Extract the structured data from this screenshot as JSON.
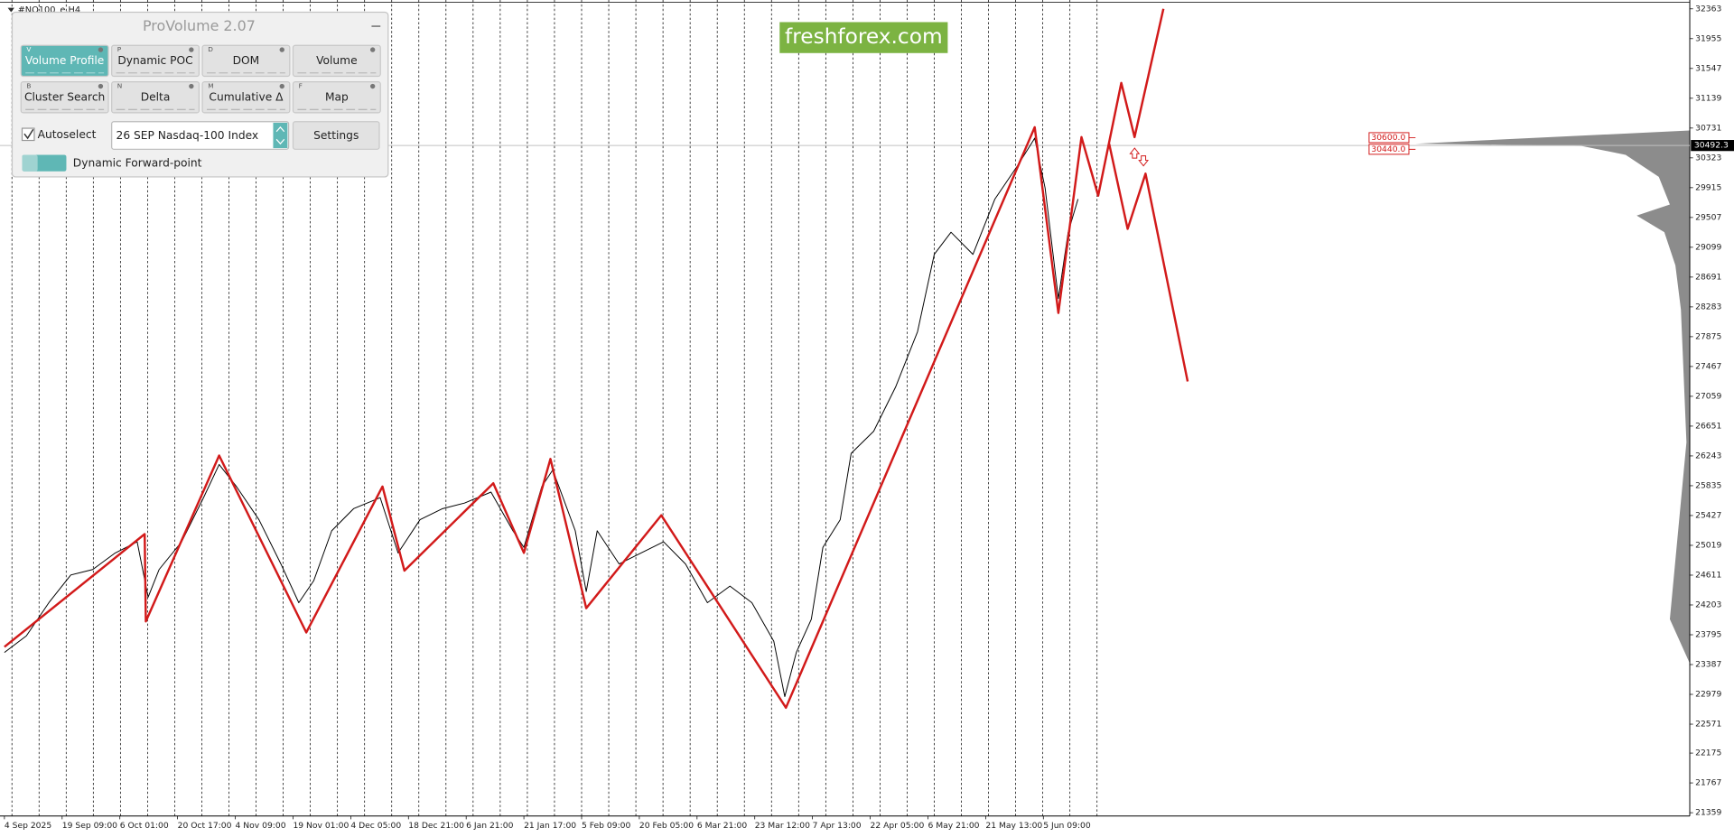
{
  "window": {
    "symbol": "#NQ100_e,H4"
  },
  "logo": "freshforex.com",
  "panel": {
    "title": "ProVolume 2.07",
    "buttons": [
      {
        "key": "V",
        "label": "Volume Profile",
        "active": true
      },
      {
        "key": "P",
        "label": "Dynamic POC",
        "active": false
      },
      {
        "key": "D",
        "label": "DOM",
        "active": false
      },
      {
        "label": "Volume",
        "active": false
      },
      {
        "key": "B",
        "label": "Cluster Search",
        "active": false
      },
      {
        "key": "N",
        "label": "Delta",
        "active": false
      },
      {
        "key": "M",
        "label": "Cumulative Δ",
        "active": false
      },
      {
        "key": "F",
        "label": "Map",
        "active": false
      }
    ],
    "autoselect": "Autoselect",
    "instrument": "26 SEP Nasdaq-100 Index",
    "settings": "Settings",
    "forward_point": "Dynamic Forward-point"
  },
  "chart_data": {
    "type": "line",
    "categories": [
      "4 Sep 2025",
      "19 Sep 09:00",
      "6 Oct 01:00",
      "20 Oct 17:00",
      "4 Nov 09:00",
      "19 Nov 01:00",
      "4 Dec 05:00",
      "18 Dec 21:00",
      "6 Jan 21:00",
      "21 Jan 17:00",
      "5 Feb 09:00",
      "20 Feb 05:00",
      "6 Mar 21:00",
      "23 Mar 12:00",
      "7 Apr 13:00",
      "22 Apr 05:00",
      "6 May 21:00",
      "21 May 13:00",
      "5 Jun 09:00"
    ],
    "xlim": [
      0,
      29.18
    ],
    "ylim": [
      21314,
      32484
    ],
    "yticks": [
      32363,
      31955,
      31547,
      31139,
      30731,
      30323,
      29915,
      29507,
      29099,
      28691,
      28283,
      27875,
      27467,
      27059,
      26651,
      26243,
      25835,
      25427,
      25019,
      24611,
      24203,
      23795,
      23387,
      22979,
      22571,
      22175,
      21767,
      21359
    ],
    "series": [
      {
        "color": "#000000",
        "x": [
          0,
          0.38,
          0.77,
          1.15,
          1.53,
          1.92,
          2.3,
          2.49,
          2.68,
          3.07,
          3.45,
          3.72,
          4.02,
          4.41,
          4.79,
          5.1,
          5.36,
          5.67,
          6.05,
          6.51,
          6.82,
          7.2,
          7.59,
          7.97,
          8.43,
          8.81,
          9.0,
          9.31,
          9.5,
          9.89,
          10.08,
          10.27,
          10.65,
          11.03,
          11.42,
          11.8,
          12.18,
          12.57,
          12.95,
          13.33,
          13.52,
          13.72,
          13.98,
          14.18,
          14.48,
          14.67,
          15.06,
          15.44,
          15.82,
          16.11,
          16.4,
          16.78,
          17.16,
          17.55,
          17.85,
          18.03,
          18.26,
          18.43,
          18.6
        ],
        "values": [
          23553,
          23780,
          24234,
          24613,
          24688,
          24915,
          25067,
          24310,
          24688,
          25067,
          25672,
          26126,
          25824,
          25370,
          24764,
          24234,
          24537,
          25218,
          25521,
          25672,
          24915,
          25370,
          25521,
          25597,
          25748,
          25218,
          24991,
          25824,
          26051,
          25218,
          24386,
          25218,
          24764,
          24915,
          25067,
          24764,
          24234,
          24461,
          24234,
          23705,
          22948,
          23553,
          24007,
          24991,
          25370,
          26278,
          26581,
          27186,
          27943,
          29002,
          29305,
          29002,
          29759,
          30213,
          30592,
          29911,
          28397,
          29305,
          29759
        ]
      },
      {
        "color": "#d21a1a",
        "x": [
          0,
          2.43,
          2.45,
          3.72,
          5.23,
          6.55,
          6.93,
          8.47,
          9.0,
          9.46,
          10.08,
          11.38,
          13.54,
          17.85,
          18.26,
          18.66,
          18.95,
          19.35,
          19.58,
          20.08
        ],
        "values": [
          23629,
          25173,
          23977,
          26248,
          23826,
          25824,
          24673,
          25869,
          24916,
          26202,
          24159,
          25430,
          22796,
          30743,
          28200,
          30607,
          29805,
          31349,
          30607,
          32363
        ]
      },
      {
        "color": "#d21a1a",
        "x": [
          19.14,
          19.46,
          19.77,
          20.5
        ],
        "values": [
          30516,
          29351,
          30107,
          27262
        ]
      }
    ],
    "last_price": 30492.3,
    "levels": [
      {
        "value": 30600,
        "label": "30600.0"
      },
      {
        "value": 30440,
        "label": "30440.0"
      }
    ]
  }
}
